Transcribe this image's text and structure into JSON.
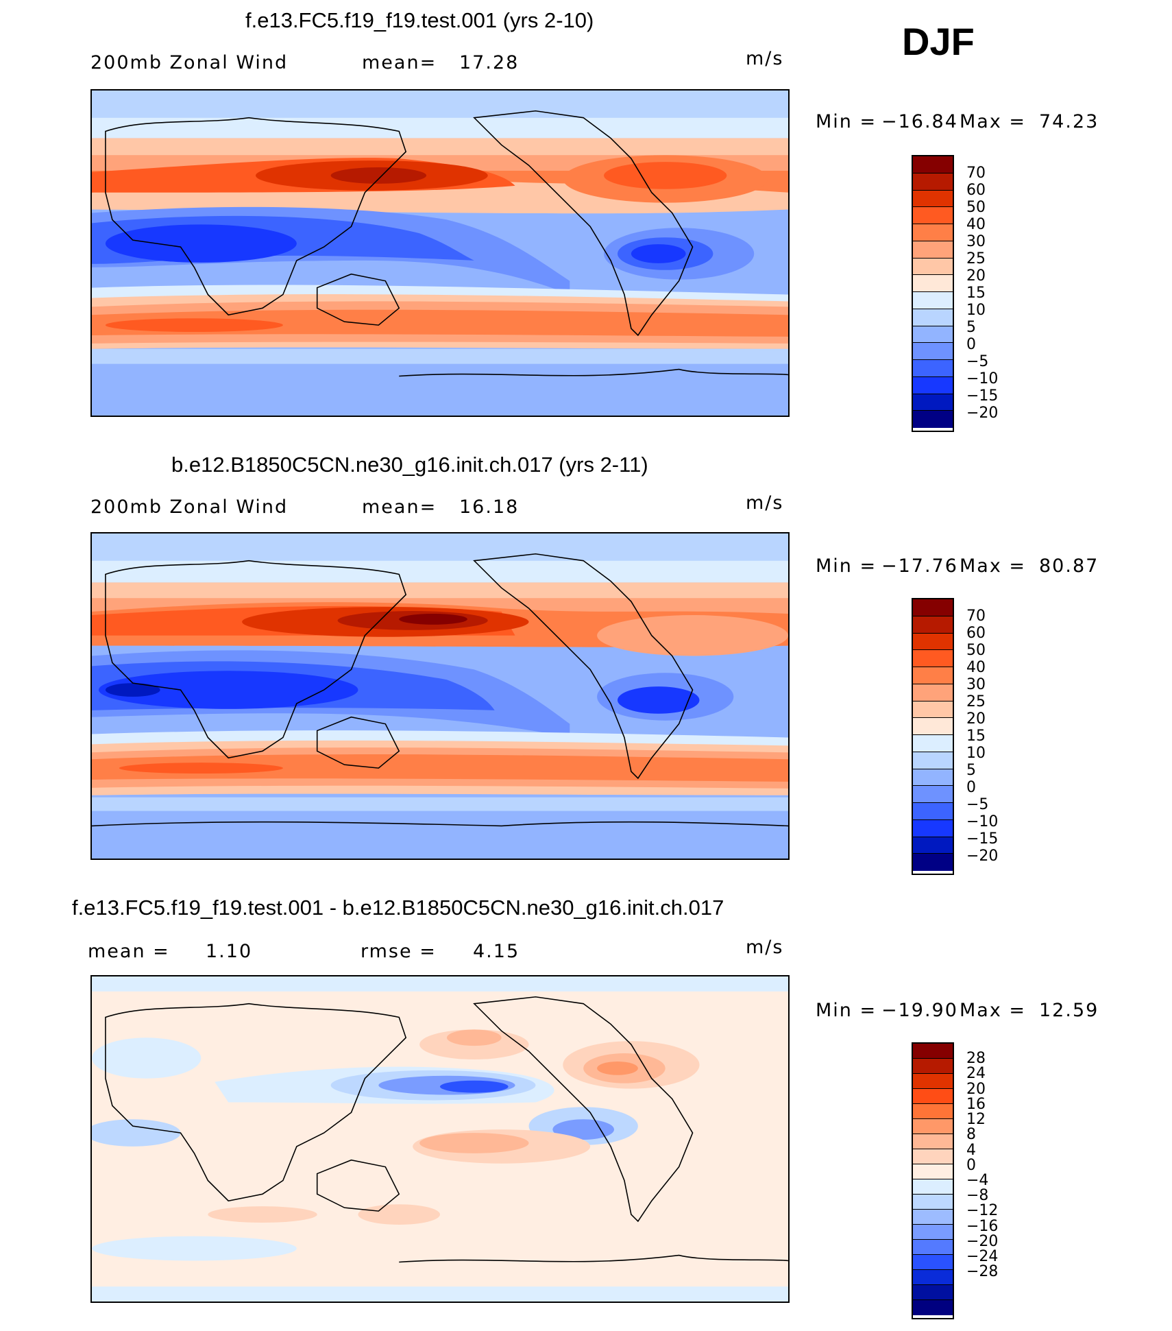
{
  "season": "DJF",
  "colors": {
    "wind_scale": [
      "#850000",
      "#b61a00",
      "#e03300",
      "#ff5a21",
      "#ff7f47",
      "#ffa37a",
      "#ffc7a7",
      "#ffe8d8",
      "#dceeff",
      "#b9d5ff",
      "#92b4ff",
      "#6e92ff",
      "#3c64ff",
      "#1738ff",
      "#0019c0",
      "#000085"
    ],
    "diff_scale": [
      "#850000",
      "#b61a00",
      "#e03300",
      "#ff4d15",
      "#ff7437",
      "#ff9868",
      "#ffb896",
      "#ffd4bd",
      "#ffeee2",
      "#dceeff",
      "#bdd8ff",
      "#9dbcff",
      "#7a9cff",
      "#547aff",
      "#2a52ff",
      "#0a2cd9",
      "#0010a0",
      "#000080"
    ],
    "land_outline": "#000000"
  },
  "panels": [
    {
      "title": "f.e13.FC5.f19_f19.test.001 (yrs 2-10)",
      "left_label": "200mb Zonal Wind",
      "mean_label": "mean=",
      "mean_value": "17.28",
      "units": "m/s",
      "min_label": "Min =",
      "min_value": "−16.84",
      "max_label": "Max =",
      "max_value": "74.23",
      "colorbar_labels": [
        "70",
        "60",
        "50",
        "40",
        "30",
        "25",
        "20",
        "15",
        "10",
        "5",
        "0",
        "−5",
        "−10",
        "−15",
        "−20"
      ]
    },
    {
      "title": "b.e12.B1850C5CN.ne30_g16.init.ch.017 (yrs 2-11)",
      "left_label": "200mb Zonal Wind",
      "mean_label": "mean=",
      "mean_value": "16.18",
      "units": "m/s",
      "min_label": "Min =",
      "min_value": "−17.76",
      "max_label": "Max =",
      "max_value": "80.87",
      "colorbar_labels": [
        "70",
        "60",
        "50",
        "40",
        "30",
        "25",
        "20",
        "15",
        "10",
        "5",
        "0",
        "−5",
        "−10",
        "−15",
        "−20"
      ]
    },
    {
      "title": "f.e13.FC5.f19_f19.test.001 - b.e12.B1850C5CN.ne30_g16.init.ch.017",
      "left_label": "mean =",
      "mean_value": "1.10",
      "rmse_label": "rmse =",
      "rmse_value": "4.15",
      "units": "m/s",
      "min_label": "Min =",
      "min_value": "−19.90",
      "max_label": "Max =",
      "max_value": "12.59",
      "colorbar_labels": [
        "28",
        "24",
        "20",
        "16",
        "12",
        "8",
        "4",
        "0",
        "−4",
        "−8",
        "−12",
        "−16",
        "−20",
        "−24",
        "−28"
      ]
    }
  ]
}
